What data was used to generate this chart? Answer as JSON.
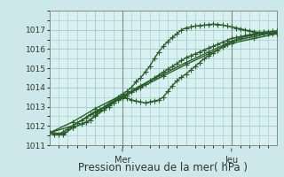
{
  "xlabel": "Pression niveau de la mer( hPa )",
  "bg_color": "#cce8e8",
  "plot_bg_color": "#d8f0f0",
  "grid_color": "#a0c8c8",
  "line_color": "#2a5e2a",
  "vline_color": "#888888",
  "ylim": [
    1011,
    1018
  ],
  "xlim": [
    0,
    50
  ],
  "yticks": [
    1011,
    1012,
    1013,
    1014,
    1015,
    1016,
    1017
  ],
  "vlines": [
    16,
    40
  ],
  "vline_labels": [
    "Mer",
    "Jeu"
  ],
  "series": [
    [
      0,
      1011.65,
      1,
      1011.55,
      2,
      1011.55,
      3,
      1011.7,
      4,
      1011.85,
      5,
      1012.0,
      6,
      1012.15,
      7,
      1012.3,
      8,
      1012.45,
      9,
      1012.6,
      10,
      1012.75,
      11,
      1012.85,
      12,
      1012.95,
      13,
      1013.05,
      14,
      1013.2,
      15,
      1013.35,
      16,
      1013.45,
      17,
      1013.6,
      18,
      1013.75,
      19,
      1013.9,
      20,
      1014.05,
      21,
      1014.2,
      22,
      1014.35,
      23,
      1014.5,
      24,
      1014.65,
      25,
      1014.8,
      26,
      1014.95,
      27,
      1015.1,
      28,
      1015.25,
      29,
      1015.4,
      30,
      1015.55,
      31,
      1015.65,
      32,
      1015.75,
      33,
      1015.85,
      34,
      1015.95,
      35,
      1016.05,
      36,
      1016.15,
      37,
      1016.25,
      38,
      1016.35,
      39,
      1016.45,
      40,
      1016.55,
      41,
      1016.6,
      42,
      1016.65,
      43,
      1016.7,
      44,
      1016.75,
      45,
      1016.8,
      46,
      1016.85,
      47,
      1016.88,
      48,
      1016.9,
      49,
      1016.92,
      50,
      1016.95
    ],
    [
      0,
      1011.65,
      5,
      1012.2,
      10,
      1012.9,
      15,
      1013.5,
      16,
      1013.55,
      20,
      1014.1,
      25,
      1014.7,
      30,
      1015.3,
      35,
      1015.85,
      40,
      1016.4,
      45,
      1016.65,
      50,
      1016.9
    ],
    [
      0,
      1011.65,
      3,
      1011.6,
      5,
      1011.9,
      7,
      1012.1,
      8,
      1012.2,
      9,
      1012.3,
      10,
      1012.55,
      11,
      1012.8,
      12,
      1013.0,
      13,
      1013.15,
      14,
      1013.3,
      15,
      1013.5,
      16,
      1013.65,
      17,
      1013.8,
      18,
      1014.0,
      19,
      1014.3,
      20,
      1014.5,
      21,
      1014.8,
      22,
      1015.1,
      23,
      1015.5,
      24,
      1015.85,
      25,
      1016.15,
      26,
      1016.4,
      27,
      1016.6,
      28,
      1016.8,
      29,
      1017.0,
      30,
      1017.1,
      31,
      1017.15,
      32,
      1017.2,
      33,
      1017.22,
      34,
      1017.25,
      35,
      1017.27,
      36,
      1017.3,
      37,
      1017.28,
      38,
      1017.25,
      39,
      1017.2,
      40,
      1017.15,
      41,
      1017.1,
      42,
      1017.05,
      43,
      1017.0,
      44,
      1016.95,
      45,
      1016.9,
      46,
      1016.87,
      47,
      1016.84,
      48,
      1016.82,
      49,
      1016.8,
      50,
      1016.78
    ],
    [
      0,
      1011.65,
      3,
      1011.55,
      5,
      1011.9,
      8,
      1012.2,
      10,
      1012.5,
      12,
      1012.85,
      13,
      1013.0,
      14,
      1013.2,
      15,
      1013.4,
      16,
      1013.55,
      17,
      1013.45,
      18,
      1013.35,
      19,
      1013.3,
      20,
      1013.25,
      21,
      1013.2,
      22,
      1013.25,
      23,
      1013.3,
      24,
      1013.35,
      25,
      1013.5,
      26,
      1013.8,
      27,
      1014.1,
      28,
      1014.35,
      29,
      1014.55,
      30,
      1014.7,
      31,
      1014.9,
      32,
      1015.1,
      33,
      1015.3,
      34,
      1015.5,
      35,
      1015.65,
      36,
      1015.8,
      37,
      1015.95,
      38,
      1016.1,
      39,
      1016.25,
      40,
      1016.4,
      41,
      1016.5,
      42,
      1016.58,
      43,
      1016.65,
      44,
      1016.7,
      45,
      1016.75,
      46,
      1016.78,
      47,
      1016.8,
      48,
      1016.82,
      49,
      1016.84,
      50,
      1016.86
    ],
    [
      0,
      1011.65,
      5,
      1012.0,
      10,
      1012.7,
      15,
      1013.4,
      16,
      1013.5,
      20,
      1014.0,
      25,
      1014.6,
      30,
      1015.2,
      35,
      1015.75,
      40,
      1016.3,
      45,
      1016.55,
      50,
      1016.8
    ]
  ],
  "marker": "+",
  "marker_size": 4,
  "linewidth": 1.0,
  "ytick_fontsize": 6.5,
  "xlabel_fontsize": 8.5,
  "vline_label_fontsize": 7
}
